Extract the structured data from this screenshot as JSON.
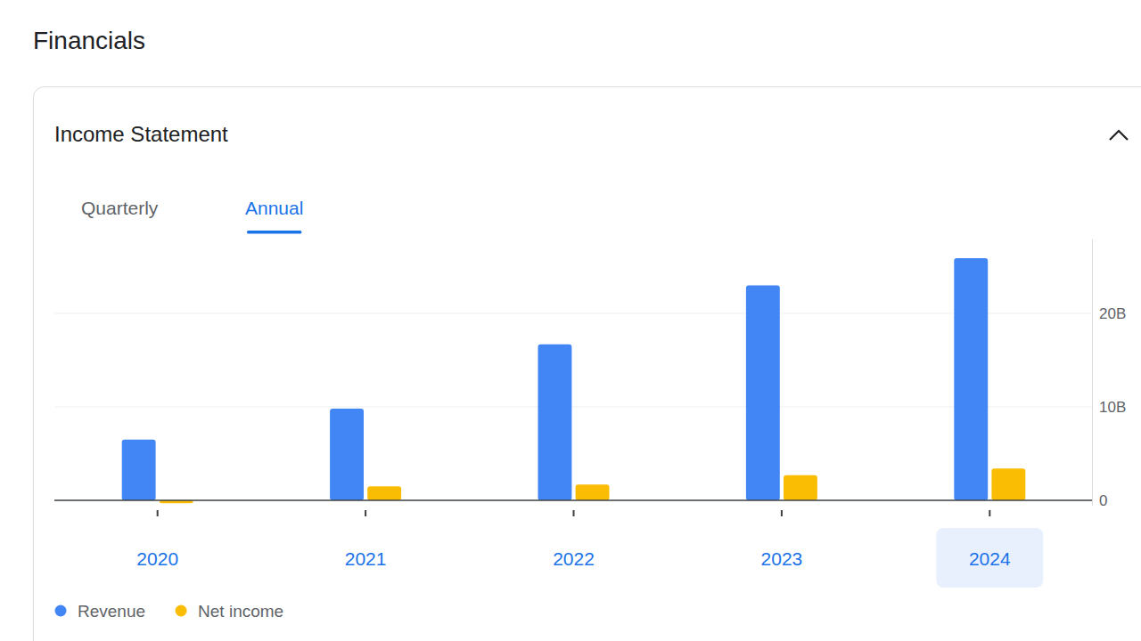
{
  "page": {
    "heading": "Financials",
    "tabs": [
      "Quarterly",
      "Annual"
    ]
  },
  "chart_data": {
    "type": "bar",
    "title": "Income Statement",
    "categories": [
      "2020",
      "2021",
      "2022",
      "2023",
      "2024"
    ],
    "series": [
      {
        "name": "Revenue",
        "color": "#4285f4",
        "values": [
          6.5,
          9.8,
          16.7,
          23.0,
          25.9
        ]
      },
      {
        "name": "Net income",
        "color": "#fbbc04",
        "values": [
          -0.3,
          1.5,
          1.7,
          2.7,
          3.4
        ]
      }
    ],
    "ylim": [
      -0.5,
      28
    ],
    "yticks": [
      0,
      {
        "value": 10,
        "label": "10B"
      },
      {
        "value": 20,
        "label": "20B"
      }
    ],
    "grid": true,
    "legend": "bottom-left"
  }
}
